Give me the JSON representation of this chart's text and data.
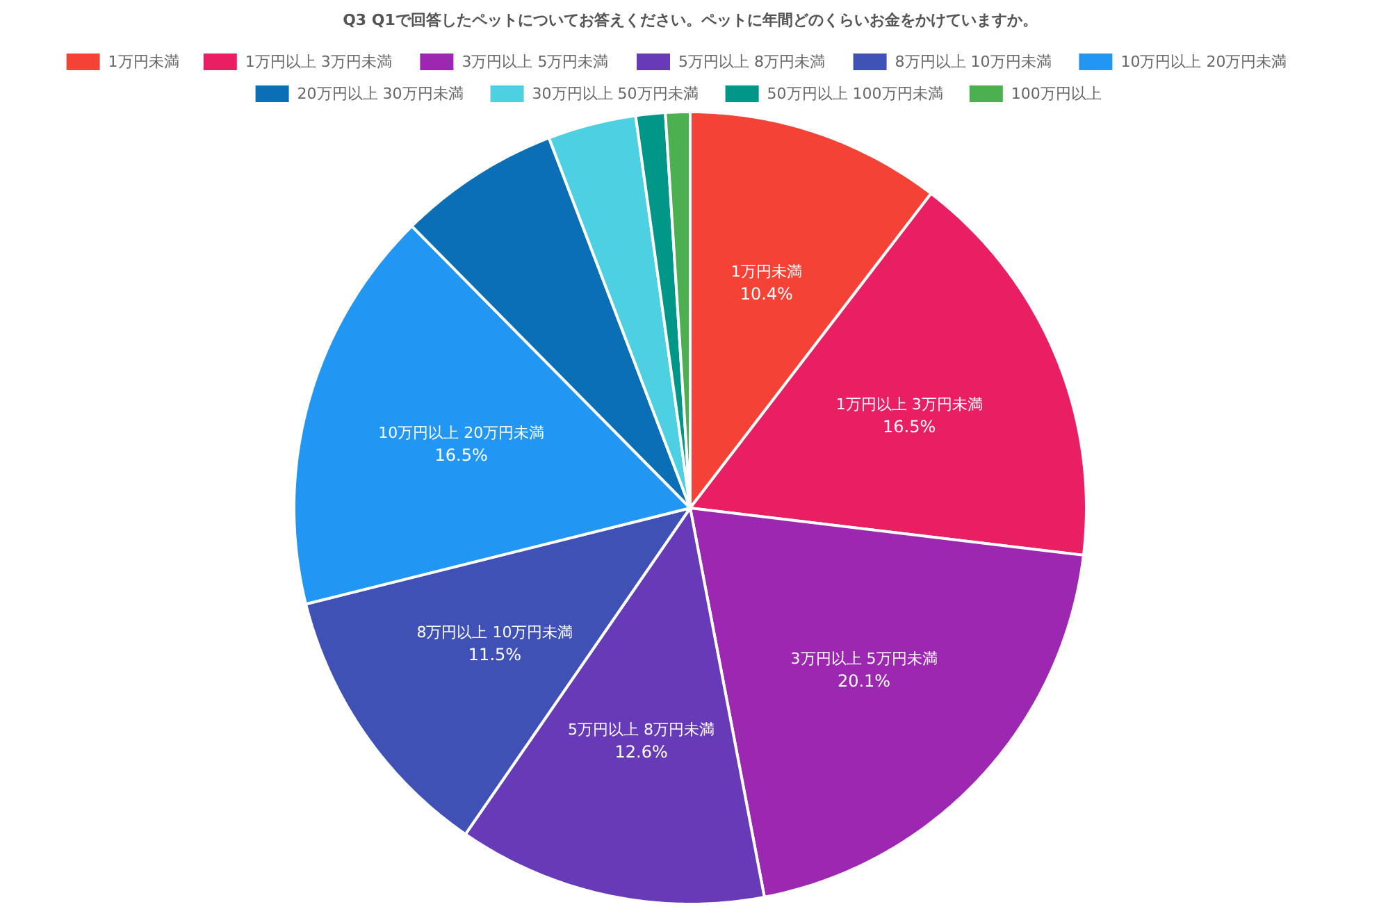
{
  "chart_data": {
    "type": "pie",
    "title": "Q3 Q1で回答したペットについてお答えください。ペットに年間どのくらいお金をかけていますか。",
    "categories": [
      "1万円未満",
      "1万円以上 3万円未満",
      "3万円以上 5万円未満",
      "5万円以上 8万円未満",
      "8万円以上 10万円未満",
      "10万円以上 20万円未満",
      "20万円以上 30万円未満",
      "30万円以上 50万円未満",
      "50万円以上 100万円未満",
      "100万円以上"
    ],
    "values": [
      10.4,
      16.5,
      20.1,
      12.6,
      11.5,
      16.5,
      6.6,
      3.6,
      1.2,
      1.0
    ],
    "colors": [
      "#f44336",
      "#e91e63",
      "#9c27b0",
      "#673ab7",
      "#3f51b5",
      "#2196f3",
      "#0a6fb5",
      "#4dd0e1",
      "#009688",
      "#4caf50"
    ],
    "value_labels": [
      "10.4%",
      "16.5%",
      "20.1%",
      "12.6%",
      "11.5%",
      "16.5%",
      null,
      null,
      null,
      null
    ],
    "legend": "top"
  }
}
